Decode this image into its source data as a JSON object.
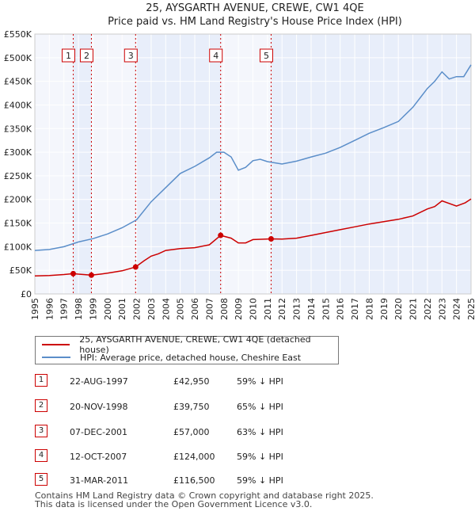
{
  "chart_data": {
    "type": "line",
    "title": "25, AYSGARTH AVENUE, CREWE, CW1 4QE",
    "subtitle": "Price paid vs. HM Land Registry's House Price Index (HPI)",
    "xlim": [
      1995,
      2025
    ],
    "ylim": [
      0,
      550000
    ],
    "y_ticks": [
      {
        "value": 0,
        "label": "£0"
      },
      {
        "value": 50000,
        "label": "£50K"
      },
      {
        "value": 100000,
        "label": "£100K"
      },
      {
        "value": 150000,
        "label": "£150K"
      },
      {
        "value": 200000,
        "label": "£200K"
      },
      {
        "value": 250000,
        "label": "£250K"
      },
      {
        "value": 300000,
        "label": "£300K"
      },
      {
        "value": 350000,
        "label": "£350K"
      },
      {
        "value": 400000,
        "label": "£400K"
      },
      {
        "value": 450000,
        "label": "£450K"
      },
      {
        "value": 500000,
        "label": "£500K"
      },
      {
        "value": 550000,
        "label": "£550K"
      }
    ],
    "x_ticks": [
      "1995",
      "1996",
      "1997",
      "1998",
      "1999",
      "2000",
      "2001",
      "2002",
      "2003",
      "2004",
      "2005",
      "2006",
      "2007",
      "2008",
      "2009",
      "2010",
      "2011",
      "2012",
      "2013",
      "2014",
      "2015",
      "2016",
      "2017",
      "2018",
      "2019",
      "2020",
      "2021",
      "2022",
      "2023",
      "2024",
      "2025"
    ],
    "highlight_bands": [
      [
        1997.64,
        1998.89
      ],
      [
        2001.93,
        2007.78
      ],
      [
        2011.25,
        2025.0
      ]
    ],
    "series": [
      {
        "name": "25, AYSGARTH AVENUE, CREWE, CW1 4QE (detached house)",
        "color": "#cc0000",
        "x": [
          1995.0,
          1996.0,
          1997.0,
          1997.64,
          1998.0,
          1998.89,
          1999.5,
          2000.0,
          2001.0,
          2001.93,
          2002.5,
          2003.0,
          2003.5,
          2004.0,
          2005.0,
          2006.0,
          2007.0,
          2007.78,
          2008.5,
          2009.0,
          2009.5,
          2010.0,
          2011.25,
          2012.0,
          2013.0,
          2014.0,
          2015.0,
          2016.0,
          2017.0,
          2018.0,
          2019.0,
          2020.0,
          2021.0,
          2022.0,
          2022.5,
          2023.0,
          2024.0,
          2024.6,
          2025.0
        ],
        "values": [
          38000,
          39000,
          41000,
          42950,
          42000,
          39750,
          42000,
          44000,
          49000,
          57000,
          70000,
          80000,
          85000,
          92000,
          96000,
          98000,
          104000,
          124000,
          118000,
          108000,
          108000,
          115000,
          116500,
          116000,
          118000,
          124000,
          130000,
          136000,
          142000,
          148000,
          153000,
          158000,
          165000,
          180000,
          185000,
          197000,
          186000,
          193000,
          201000
        ]
      },
      {
        "name": "HPI: Average price, detached house, Cheshire East",
        "color": "#5b8ec9",
        "x": [
          1995.0,
          1996.0,
          1997.0,
          1998.0,
          1999.0,
          2000.0,
          2001.0,
          2002.0,
          2003.0,
          2004.0,
          2005.0,
          2006.0,
          2007.0,
          2007.5,
          2008.0,
          2008.5,
          2009.0,
          2009.5,
          2010.0,
          2010.5,
          2011.0,
          2012.0,
          2013.0,
          2014.0,
          2015.0,
          2016.0,
          2017.0,
          2018.0,
          2019.0,
          2020.0,
          2021.0,
          2021.5,
          2022.0,
          2022.5,
          2023.0,
          2023.5,
          2024.0,
          2024.5,
          2025.0
        ],
        "values": [
          92000,
          94000,
          100000,
          110000,
          117000,
          127000,
          140000,
          157000,
          195000,
          225000,
          255000,
          270000,
          288000,
          300000,
          300000,
          290000,
          262000,
          268000,
          282000,
          285000,
          280000,
          275000,
          281000,
          290000,
          298000,
          310000,
          325000,
          340000,
          352000,
          365000,
          395000,
          415000,
          435000,
          450000,
          470000,
          455000,
          460000,
          460000,
          485000
        ]
      }
    ],
    "sale_points": [
      {
        "label": "1",
        "x": 1997.64,
        "value": 42950
      },
      {
        "label": "2",
        "x": 1998.89,
        "value": 39750
      },
      {
        "label": "3",
        "x": 2001.93,
        "value": 57000
      },
      {
        "label": "4",
        "x": 2007.78,
        "value": 124000
      },
      {
        "label": "5",
        "x": 2011.25,
        "value": 116500
      }
    ]
  },
  "sales": [
    {
      "num": "1",
      "date": "22-AUG-1997",
      "price": "£42,950",
      "hpi": "59% ↓ HPI"
    },
    {
      "num": "2",
      "date": "20-NOV-1998",
      "price": "£39,750",
      "hpi": "65% ↓ HPI"
    },
    {
      "num": "3",
      "date": "07-DEC-2001",
      "price": "£57,000",
      "hpi": "63% ↓ HPI"
    },
    {
      "num": "4",
      "date": "12-OCT-2007",
      "price": "£124,000",
      "hpi": "59% ↓ HPI"
    },
    {
      "num": "5",
      "date": "31-MAR-2011",
      "price": "£116,500",
      "hpi": "59% ↓ HPI"
    }
  ],
  "legend": {
    "property_label": "25, AYSGARTH AVENUE, CREWE, CW1 4QE (detached house)",
    "hpi_label": "HPI: Average price, detached house, Cheshire East"
  },
  "footer": {
    "line1": "Contains HM Land Registry data © Crown copyright and database right 2025.",
    "line2": "This data is licensed under the Open Government Licence v3.0."
  },
  "colors": {
    "property": "#cc0000",
    "hpi": "#5b8ec9",
    "band": "#e8eefa",
    "grid": "#ffffff",
    "plot_bg": "#f4f6fc"
  }
}
